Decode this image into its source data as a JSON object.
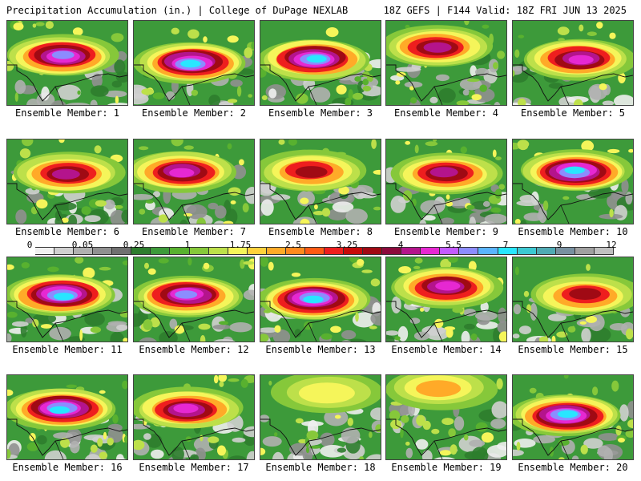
{
  "header": {
    "left": "Precipitation Accumulation (in.) | College of DuPage NEXLAB",
    "right": "18Z GEFS | F144 Valid: 18Z FRI JUN 13 2025"
  },
  "colorbar": {
    "ticks": [
      "0",
      "0.05",
      "0.25",
      "1",
      "1.75",
      "2.5",
      "3.25",
      "4",
      "5.5",
      "7",
      "9",
      "12"
    ],
    "colors": [
      "#f0f0f0",
      "#d0d0d0",
      "#b0b0b0",
      "#909090",
      "#707070",
      "#2e7d2e",
      "#3d9a3a",
      "#58b12f",
      "#86c83a",
      "#bde04a",
      "#f5f55a",
      "#ffd23c",
      "#ffaa28",
      "#ff8a1e",
      "#ff5a14",
      "#ee1e1e",
      "#c80a0a",
      "#a00a14",
      "#8c0a3c",
      "#b4148c",
      "#e628d2",
      "#c35aff",
      "#8c8cff",
      "#5ab4ff",
      "#28e6ff",
      "#3cc8d2",
      "#50aab4",
      "#7890a0",
      "#a0a0a0",
      "#c0c0c0"
    ]
  },
  "members": [
    {
      "label": "Ensemble Member: 1"
    },
    {
      "label": "Ensemble Member: 2"
    },
    {
      "label": "Ensemble Member: 3"
    },
    {
      "label": "Ensemble Member: 4"
    },
    {
      "label": "Ensemble Member: 5"
    },
    {
      "label": "Ensemble Member: 6"
    },
    {
      "label": "Ensemble Member: 7"
    },
    {
      "label": "Ensemble Member: 8"
    },
    {
      "label": "Ensemble Member: 9"
    },
    {
      "label": "Ensemble Member: 10"
    },
    {
      "label": "Ensemble Member: 11"
    },
    {
      "label": "Ensemble Member: 12"
    },
    {
      "label": "Ensemble Member: 13"
    },
    {
      "label": "Ensemble Member: 14"
    },
    {
      "label": "Ensemble Member: 15"
    },
    {
      "label": "Ensemble Member: 16"
    },
    {
      "label": "Ensemble Member: 17"
    },
    {
      "label": "Ensemble Member: 18"
    },
    {
      "label": "Ensemble Member: 19"
    },
    {
      "label": "Ensemble Member: 20"
    }
  ]
}
